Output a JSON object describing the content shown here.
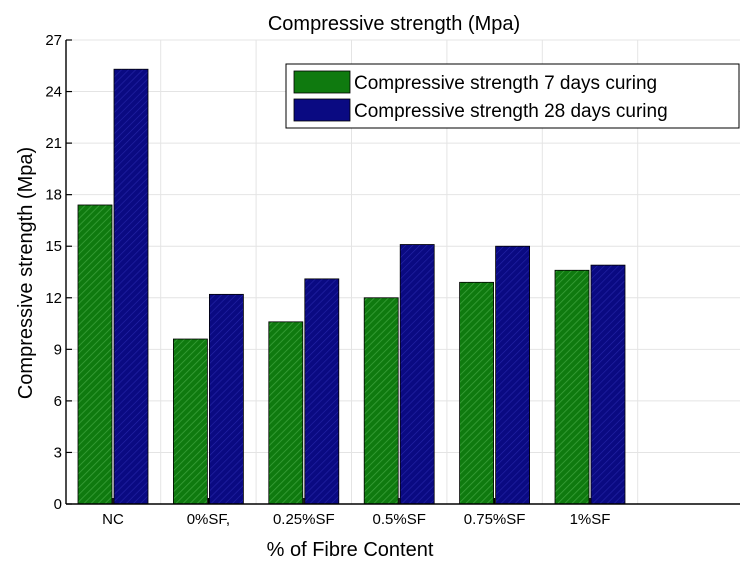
{
  "chart_data": {
    "type": "bar",
    "title": "Compressive strength (Mpa)",
    "xlabel": "% of Fibre Content",
    "ylabel": "Compressive strength (Mpa)",
    "categories": [
      "NC",
      "0%SF,",
      "0.25%SF",
      "0.5%SF",
      "0.75%SF",
      "1%SF"
    ],
    "series": [
      {
        "name": "Compressive strength 7 days curing",
        "values": [
          17.4,
          9.6,
          10.6,
          12.0,
          12.9,
          13.6
        ],
        "color": "#0f7a0f"
      },
      {
        "name": "Compressive strength 28 days curing",
        "values": [
          25.3,
          12.2,
          13.1,
          15.1,
          15.0,
          13.9
        ],
        "color": "#0a0a82"
      }
    ],
    "ylim": [
      0,
      27
    ],
    "yticks": [
      0,
      3,
      6,
      9,
      12,
      15,
      18,
      21,
      24,
      27
    ],
    "grid": true,
    "legend_position": "top-right"
  }
}
